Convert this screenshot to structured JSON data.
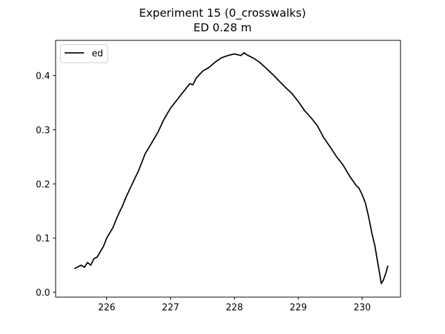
{
  "chart_data": {
    "type": "line",
    "title": "Experiment 15 (0_crosswalks)",
    "subtitle": "ED 0.28 m",
    "xlabel": "",
    "ylabel": "",
    "xlim": [
      225.2,
      230.6
    ],
    "ylim": [
      -0.009,
      0.465
    ],
    "xticks": [
      226,
      227,
      228,
      229,
      230
    ],
    "xtick_labels": [
      "226",
      "227",
      "228",
      "229",
      "230"
    ],
    "yticks": [
      0.0,
      0.1,
      0.2,
      0.3,
      0.4
    ],
    "ytick_labels": [
      "0.0",
      "0.1",
      "0.2",
      "0.3",
      "0.4"
    ],
    "grid": false,
    "legend": {
      "position": "top-left",
      "entries": [
        "ed"
      ]
    },
    "series": [
      {
        "name": "ed",
        "color": "#000000",
        "x": [
          225.5,
          225.6,
          225.65,
          225.7,
          225.75,
          225.8,
          225.85,
          225.9,
          225.95,
          226.0,
          226.1,
          226.15,
          226.2,
          226.25,
          226.3,
          226.4,
          226.5,
          226.55,
          226.6,
          226.7,
          226.75,
          226.8,
          226.9,
          227.0,
          227.1,
          227.2,
          227.3,
          227.35,
          227.4,
          227.5,
          227.6,
          227.7,
          227.8,
          227.9,
          228.0,
          228.1,
          228.15,
          228.2,
          228.3,
          228.4,
          228.5,
          228.6,
          228.7,
          228.8,
          228.9,
          229.0,
          229.1,
          229.2,
          229.3,
          229.4,
          229.5,
          229.6,
          229.7,
          229.8,
          229.9,
          229.95,
          230.0,
          230.05,
          230.1,
          230.15,
          230.2,
          230.25,
          230.3,
          230.33,
          230.37,
          230.4
        ],
        "y": [
          0.044,
          0.05,
          0.046,
          0.055,
          0.05,
          0.062,
          0.065,
          0.075,
          0.085,
          0.1,
          0.12,
          0.135,
          0.148,
          0.16,
          0.175,
          0.2,
          0.225,
          0.24,
          0.255,
          0.275,
          0.285,
          0.295,
          0.32,
          0.34,
          0.355,
          0.37,
          0.385,
          0.383,
          0.395,
          0.408,
          0.415,
          0.425,
          0.433,
          0.437,
          0.44,
          0.437,
          0.442,
          0.438,
          0.432,
          0.424,
          0.413,
          0.402,
          0.39,
          0.378,
          0.367,
          0.352,
          0.335,
          0.322,
          0.307,
          0.285,
          0.268,
          0.25,
          0.235,
          0.215,
          0.198,
          0.192,
          0.18,
          0.165,
          0.14,
          0.11,
          0.085,
          0.05,
          0.016,
          0.022,
          0.035,
          0.048
        ]
      }
    ]
  }
}
